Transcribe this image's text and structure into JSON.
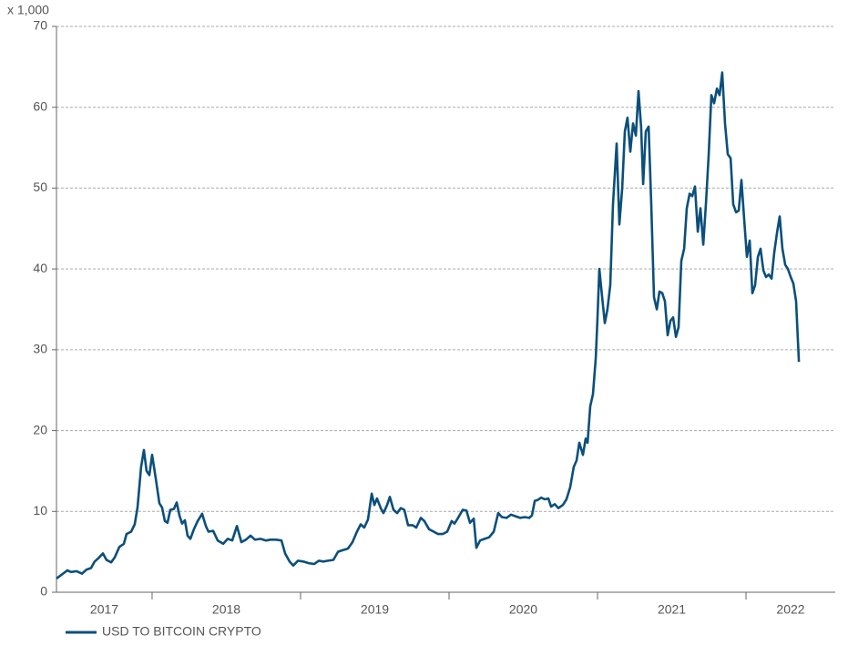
{
  "chart_data": {
    "type": "line",
    "unit_label": "x 1,000",
    "xlim": [
      2017.356,
      2022.601
    ],
    "xticks": [
      {
        "value": 2017,
        "label": "2017"
      },
      {
        "value": 2018,
        "label": "2018"
      },
      {
        "value": 2019,
        "label": "2019"
      },
      {
        "value": 2020,
        "label": "2020"
      },
      {
        "value": 2021,
        "label": "2021"
      },
      {
        "value": 2022,
        "label": "2022"
      }
    ],
    "ylim": [
      0,
      70
    ],
    "yticks": [
      0,
      10,
      20,
      30,
      40,
      50,
      60,
      70
    ],
    "grid": true,
    "legend": "bottom-left",
    "series": [
      {
        "name": "USD TO BITCOIN CRYPTO",
        "color": "#0b4f7c",
        "x": [
          2017.356,
          2017.393,
          2017.429,
          2017.454,
          2017.491,
          2017.528,
          2017.558,
          2017.589,
          2017.613,
          2017.638,
          2017.669,
          2017.693,
          2017.724,
          2017.748,
          2017.779,
          2017.81,
          2017.828,
          2017.859,
          2017.883,
          2017.902,
          2017.926,
          2017.945,
          2017.963,
          2017.982,
          2018.0,
          2018.025,
          2018.049,
          2018.067,
          2018.086,
          2018.104,
          2018.123,
          2018.147,
          2018.166,
          2018.184,
          2018.202,
          2018.221,
          2018.239,
          2018.258,
          2018.282,
          2018.307,
          2018.337,
          2018.362,
          2018.38,
          2018.411,
          2018.442,
          2018.479,
          2018.509,
          2018.54,
          2018.571,
          2018.601,
          2018.632,
          2018.663,
          2018.693,
          2018.73,
          2018.767,
          2018.798,
          2018.834,
          2018.871,
          2018.896,
          2018.926,
          2018.951,
          2018.982,
          2019.018,
          2019.055,
          2019.092,
          2019.123,
          2019.153,
          2019.184,
          2019.221,
          2019.252,
          2019.282,
          2019.319,
          2019.35,
          2019.38,
          2019.405,
          2019.429,
          2019.454,
          2019.479,
          2019.497,
          2019.515,
          2019.54,
          2019.558,
          2019.583,
          2019.601,
          2019.626,
          2019.65,
          2019.675,
          2019.699,
          2019.724,
          2019.755,
          2019.779,
          2019.81,
          2019.834,
          2019.865,
          2019.896,
          2019.926,
          2019.957,
          2019.988,
          2020.018,
          2020.037,
          2020.061,
          2020.092,
          2020.117,
          2020.141,
          2020.166,
          2020.184,
          2020.209,
          2020.239,
          2020.27,
          2020.301,
          2020.331,
          2020.356,
          2020.387,
          2020.417,
          2020.448,
          2020.479,
          2020.509,
          2020.54,
          2020.558,
          2020.577,
          2020.595,
          2020.62,
          2020.644,
          2020.669,
          2020.687,
          2020.712,
          2020.736,
          2020.767,
          2020.791,
          2020.816,
          2020.84,
          2020.859,
          2020.877,
          2020.902,
          2020.92,
          2020.933,
          2020.951,
          2020.969,
          2020.988,
          2021.0,
          2021.012,
          2021.031,
          2021.049,
          2021.067,
          2021.086,
          2021.104,
          2021.129,
          2021.147,
          2021.166,
          2021.184,
          2021.202,
          2021.221,
          2021.239,
          2021.258,
          2021.276,
          2021.294,
          2021.307,
          2021.325,
          2021.344,
          2021.362,
          2021.38,
          2021.399,
          2021.417,
          2021.436,
          2021.454,
          2021.472,
          2021.491,
          2021.509,
          2021.528,
          2021.546,
          2021.564,
          2021.583,
          2021.601,
          2021.62,
          2021.638,
          2021.656,
          2021.675,
          2021.693,
          2021.712,
          2021.73,
          2021.748,
          2021.767,
          2021.785,
          2021.804,
          2021.822,
          2021.84,
          2021.859,
          2021.877,
          2021.896,
          2021.914,
          2021.933,
          2021.951,
          2021.969,
          2021.988,
          2022.006,
          2022.025,
          2022.043,
          2022.061,
          2022.08,
          2022.098,
          2022.117,
          2022.135,
          2022.153,
          2022.172,
          2022.19,
          2022.209,
          2022.227,
          2022.245,
          2022.264,
          2022.282,
          2022.301,
          2022.319,
          2022.337,
          2022.356
        ],
        "values": [
          1.7,
          2.2,
          2.7,
          2.5,
          2.6,
          2.3,
          2.8,
          3.0,
          3.8,
          4.2,
          4.8,
          4.0,
          3.7,
          4.3,
          5.6,
          6.0,
          7.2,
          7.5,
          8.4,
          10.5,
          15.5,
          17.6,
          15,
          14.5,
          17,
          14,
          11,
          10.5,
          8.8,
          8.6,
          10.2,
          10.3,
          11.1,
          9.5,
          8.5,
          8.9,
          7,
          6.6,
          7.8,
          8.8,
          9.7,
          8.2,
          7.5,
          7.6,
          6.4,
          6.0,
          6.6,
          6.4,
          8.2,
          6.2,
          6.5,
          7.0,
          6.5,
          6.6,
          6.4,
          6.5,
          6.5,
          6.4,
          4.8,
          3.8,
          3.3,
          3.9,
          3.8,
          3.6,
          3.5,
          3.9,
          3.8,
          3.9,
          4.0,
          5.0,
          5.2,
          5.4,
          6.2,
          7.5,
          8.4,
          8.0,
          9.0,
          12.2,
          10.8,
          11.6,
          10.4,
          9.8,
          10.8,
          11.8,
          10.2,
          9.8,
          10.4,
          10.2,
          8.3,
          8.3,
          8.0,
          9.2,
          8.8,
          7.8,
          7.5,
          7.2,
          7.2,
          7.5,
          8.8,
          8.5,
          9.2,
          10.2,
          10.1,
          8.6,
          9.1,
          5.5,
          6.4,
          6.6,
          6.8,
          7.5,
          9.8,
          9.3,
          9.2,
          9.6,
          9.4,
          9.2,
          9.3,
          9.2,
          9.5,
          11.3,
          11.4,
          11.7,
          11.5,
          11.6,
          10.6,
          10.9,
          10.4,
          10.8,
          11.5,
          13.0,
          15.5,
          16.3,
          18.5,
          17.0,
          19.0,
          18.5,
          23.0,
          24.5,
          29.0,
          34.0,
          40.0,
          36.5,
          33.3,
          35.0,
          38,
          48,
          55.5,
          45.5,
          50.0,
          57.0,
          58.7,
          54.5,
          58.0,
          56.5,
          62.0,
          57.5,
          50.5,
          57.0,
          57.6,
          48,
          36.5,
          35.0,
          37.2,
          37.0,
          36.0,
          31.8,
          33.6,
          34.0,
          31.6,
          32.8,
          41,
          42.5,
          47.5,
          49.3,
          49.0,
          50.2,
          44.6,
          47.5,
          43.0,
          48.0,
          54,
          61.5,
          60.5,
          62.3,
          61.5,
          64.3,
          58,
          54.2,
          53.7,
          48,
          47,
          47.2,
          51,
          46,
          41.5,
          43.5,
          37,
          38,
          41.5,
          42.5,
          39.8,
          39.0,
          39.3,
          38.8,
          42,
          44.5,
          46.5,
          42.5,
          40.5,
          40,
          39,
          38.2,
          36,
          28.5
        ]
      }
    ]
  }
}
